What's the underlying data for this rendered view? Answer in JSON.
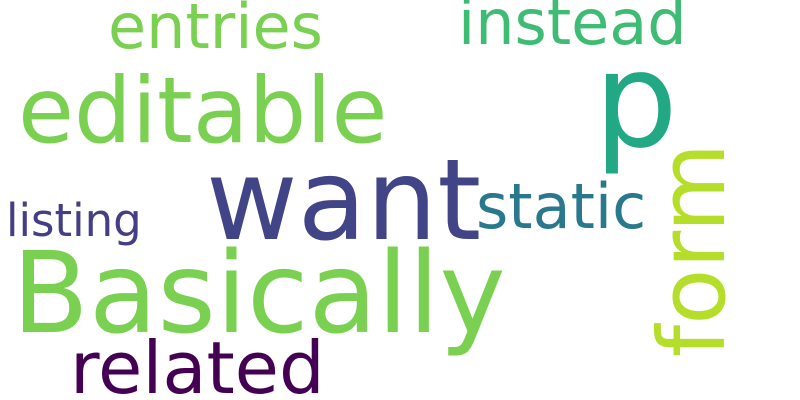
{
  "words": {
    "entries": {
      "text": "entries",
      "color": "#7ad151"
    },
    "instead": {
      "text": "instead",
      "color": "#3fbc73"
    },
    "editable": {
      "text": "editable",
      "color": "#7ad151"
    },
    "p": {
      "text": "p",
      "color": "#22a884"
    },
    "want": {
      "text": "want",
      "color": "#414487"
    },
    "static": {
      "text": "static",
      "color": "#2a788e"
    },
    "listing": {
      "text": "listing",
      "color": "#433e85"
    },
    "basically": {
      "text": "Basically",
      "color": "#7ad151"
    },
    "form": {
      "text": "form",
      "color": "#b5de2b"
    },
    "related": {
      "text": "related",
      "color": "#440154"
    }
  }
}
